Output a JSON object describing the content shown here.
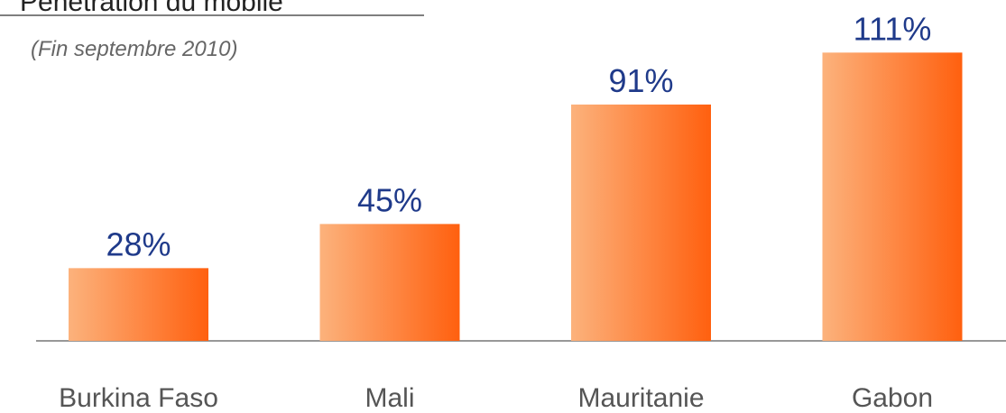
{
  "chart_data": {
    "type": "bar",
    "title": "Pénétration du mobile",
    "subtitle": "(Fin septembre 2010)",
    "categories": [
      "Burkina Faso",
      "Mali",
      "Mauritanie",
      "Gabon"
    ],
    "values": [
      28,
      45,
      91,
      111
    ],
    "value_labels": [
      "28%",
      "45%",
      "91%",
      "111%"
    ],
    "gradient_colors": [
      "#fcb27c",
      "#ff600f"
    ],
    "label_color": "#1f3a8a"
  }
}
